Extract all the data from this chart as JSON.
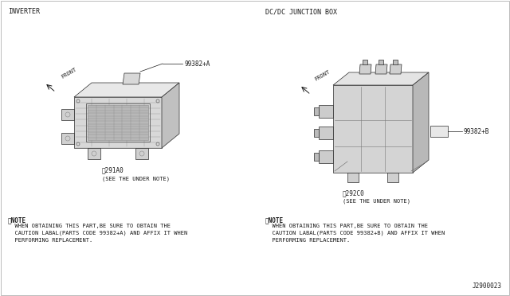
{
  "background_color": "#ffffff",
  "text_color": "#1a1a1a",
  "title_left": "INVERTER",
  "title_right": "DC/DC JUNCTION BOX",
  "label_left": "99382+A",
  "label_right": "99382+B",
  "see_note": "(SEE THE UNDER NOTE)",
  "note_symbol_left": "※NOTE",
  "note_symbol_right": "※NOTE",
  "note_text_left": "  WHEN OBTAINING THIS PART,BE SURE TO OBTAIN THE\n  CAUTION LABAL(PARTS CODE 99382+A) AND AFFIX IT WHEN\n  PERFORMING REPLACEMENT.",
  "note_text_right": "  WHEN OBTAINING THIS PART,BE SURE TO OBTAIN THE\n  CAUTION LABAL(PARTS CODE 99382+B) AND AFFIX IT WHEN\n  PERFORMING REPLACEMENT.",
  "diagram_id": "J2900023",
  "front_label": "FRONT",
  "part_star_left": "※291A0",
  "part_star_right": "※292C0",
  "edge_color": "#2a2a2a",
  "fill_light": "#f0f0f0",
  "fill_mid": "#e0e0e0",
  "fill_dark": "#c8c8c8",
  "fill_darker": "#b0b0b0"
}
